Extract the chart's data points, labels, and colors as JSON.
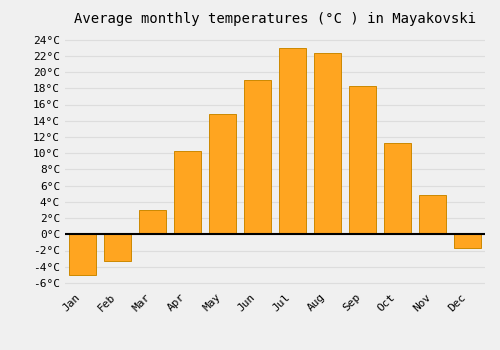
{
  "title": "Average monthly temperatures (°C ) in Mayakovski",
  "months": [
    "Jan",
    "Feb",
    "Mar",
    "Apr",
    "May",
    "Jun",
    "Jul",
    "Aug",
    "Sep",
    "Oct",
    "Nov",
    "Dec"
  ],
  "values": [
    -5.0,
    -3.3,
    3.0,
    10.3,
    14.8,
    19.0,
    23.0,
    22.3,
    18.3,
    11.2,
    4.8,
    -1.7
  ],
  "bar_color": "#FFA520",
  "bar_edge_color": "#CC8800",
  "background_color": "#F0F0F0",
  "ylim": [
    -6.5,
    25
  ],
  "yticks": [
    -6,
    -4,
    -2,
    0,
    2,
    4,
    6,
    8,
    10,
    12,
    14,
    16,
    18,
    20,
    22,
    24
  ],
  "grid_color": "#DDDDDD",
  "title_fontsize": 10,
  "tick_fontsize": 8,
  "font_family": "monospace"
}
